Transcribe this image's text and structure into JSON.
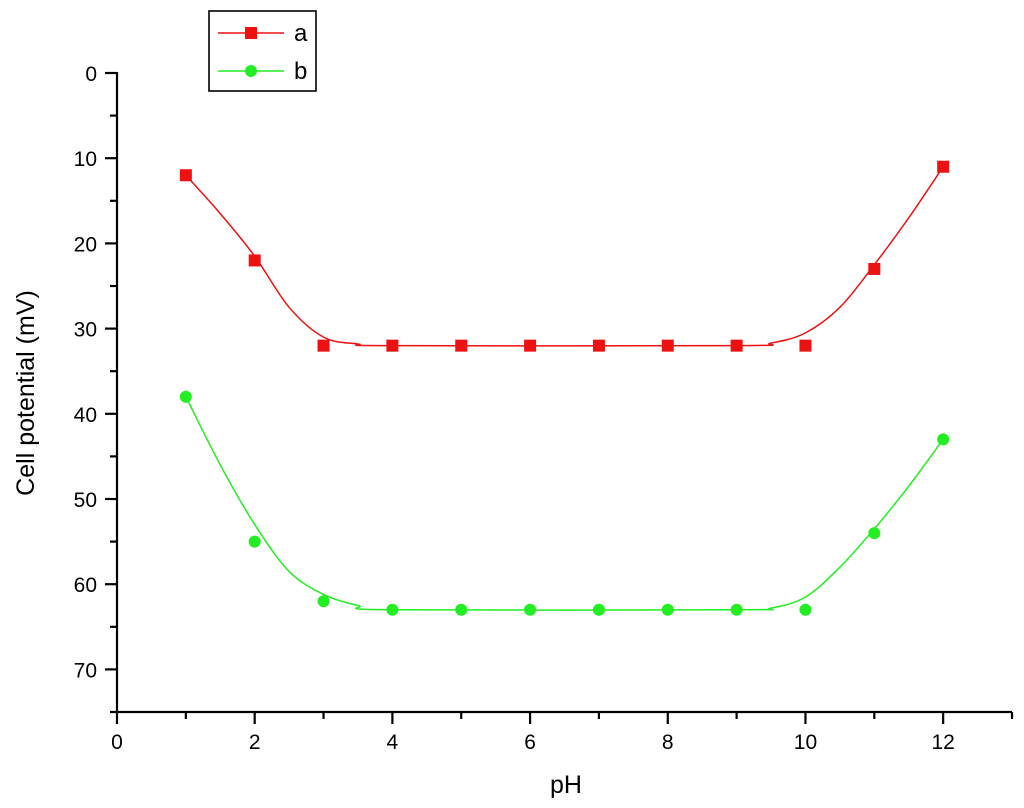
{
  "chart_data": {
    "type": "line",
    "title": "",
    "xlabel": "pH",
    "ylabel": "Cell potential (mV)",
    "xlim": [
      0,
      13
    ],
    "ylim": [
      0,
      75
    ],
    "y_inverted": true,
    "xticks": [
      0,
      2,
      4,
      6,
      8,
      10,
      12
    ],
    "yticks": [
      0,
      10,
      20,
      30,
      40,
      50,
      60,
      70
    ],
    "grid": false,
    "legend_position": "top-left",
    "series": [
      {
        "name": "a",
        "color": "#ee1111",
        "marker": "square",
        "x": [
          1,
          2,
          3,
          4,
          5,
          6,
          7,
          8,
          9,
          10,
          11,
          12
        ],
        "y": [
          12,
          22,
          32,
          32,
          32,
          32,
          32,
          32,
          32,
          32,
          23,
          11
        ],
        "fit": [
          [
            1,
            12
          ],
          [
            1.5,
            16.5
          ],
          [
            2,
            21.5
          ],
          [
            2.5,
            27.5
          ],
          [
            3,
            31
          ],
          [
            3.5,
            31.8
          ],
          [
            4,
            32
          ],
          [
            9,
            32
          ],
          [
            9.5,
            31.7
          ],
          [
            10,
            30.5
          ],
          [
            10.5,
            27.5
          ],
          [
            11,
            22.5
          ],
          [
            11.5,
            17
          ],
          [
            12,
            11
          ]
        ]
      },
      {
        "name": "b",
        "color": "#22ee22",
        "marker": "circle",
        "x": [
          1,
          2,
          3,
          4,
          5,
          6,
          7,
          8,
          9,
          10,
          11,
          12
        ],
        "y": [
          38,
          55,
          62,
          63,
          63,
          63,
          63,
          63,
          63,
          63,
          54,
          43
        ],
        "fit": [
          [
            1,
            38
          ],
          [
            1.5,
            46
          ],
          [
            2,
            53
          ],
          [
            2.5,
            58.5
          ],
          [
            3,
            61.2
          ],
          [
            3.5,
            62.5
          ],
          [
            4,
            63
          ],
          [
            9,
            63
          ],
          [
            9.5,
            62.8
          ],
          [
            10,
            61.5
          ],
          [
            10.5,
            58
          ],
          [
            11,
            53.5
          ],
          [
            11.5,
            48.5
          ],
          [
            12,
            43
          ]
        ]
      }
    ]
  }
}
